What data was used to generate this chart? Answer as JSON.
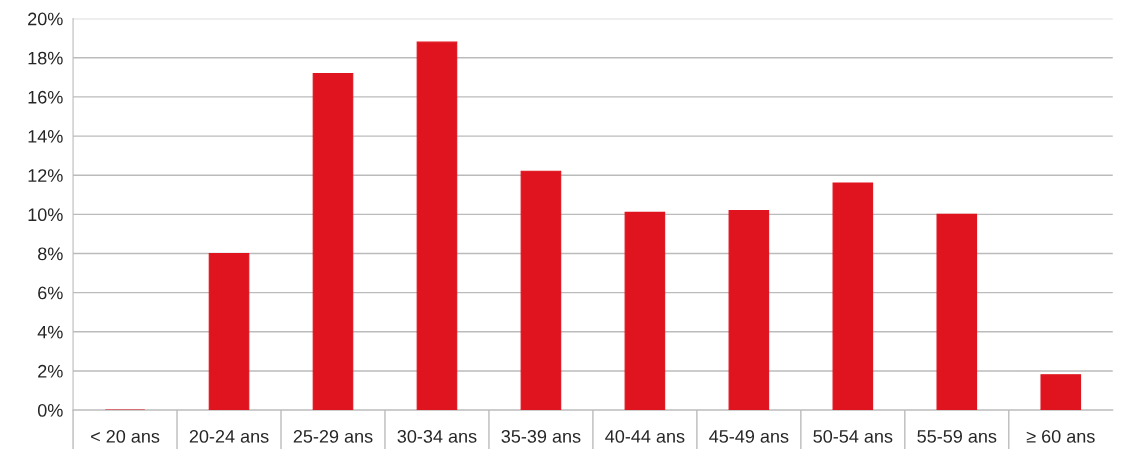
{
  "chart_data": {
    "type": "bar",
    "categories": [
      "< 20 ans",
      "20-24 ans",
      "25-29 ans",
      "30-34 ans",
      "35-39 ans",
      "40-44 ans",
      "45-49 ans",
      "50-54 ans",
      "55-59 ans",
      "≥ 60 ans"
    ],
    "values": [
      0,
      8.0,
      17.2,
      18.8,
      12.2,
      10.1,
      10.2,
      11.6,
      10.0,
      1.8
    ],
    "color": "#e0141e",
    "ylim": [
      0,
      20
    ],
    "yticks": [
      {
        "value": 0,
        "label": "0%"
      },
      {
        "value": 2,
        "label": "2%"
      },
      {
        "value": 4,
        "label": "4%"
      },
      {
        "value": 6,
        "label": "6%"
      },
      {
        "value": 8,
        "label": "8%"
      },
      {
        "value": 10,
        "label": "10%"
      },
      {
        "value": 12,
        "label": "12%"
      },
      {
        "value": 14,
        "label": "14%"
      },
      {
        "value": 16,
        "label": "16%"
      },
      {
        "value": 18,
        "label": "18%"
      },
      {
        "value": 20,
        "label": "20%"
      }
    ],
    "grid": "y",
    "legend": false
  }
}
